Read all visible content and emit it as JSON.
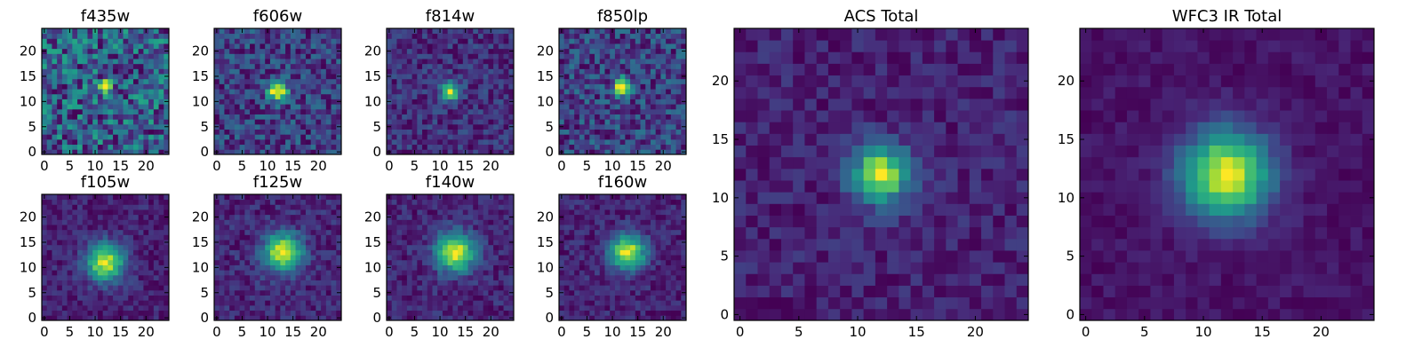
{
  "chart_data": [
    {
      "type": "heatmap",
      "title": "f435w",
      "colormap": "viridis",
      "grid_size": 25,
      "xlim": [
        0,
        24
      ],
      "ylim": [
        0,
        24
      ],
      "xticks": [
        "0",
        "5",
        "10",
        "15",
        "20"
      ],
      "yticks": [
        "0",
        "5",
        "10",
        "15",
        "20"
      ],
      "peak": [
        12,
        13
      ],
      "peak_width": 0.9,
      "peak_amp": 0.55,
      "noise": 0.55,
      "base": 0.35,
      "seed": 11
    },
    {
      "type": "heatmap",
      "title": "f606w",
      "colormap": "viridis",
      "grid_size": 25,
      "xlim": [
        0,
        24
      ],
      "ylim": [
        0,
        24
      ],
      "xticks": [
        "0",
        "5",
        "10",
        "15",
        "20"
      ],
      "yticks": [
        "0",
        "5",
        "10",
        "15",
        "20"
      ],
      "peak": [
        12,
        12
      ],
      "peak_width": 1.4,
      "peak_amp": 0.75,
      "noise": 0.35,
      "base": 0.25,
      "seed": 23
    },
    {
      "type": "heatmap",
      "title": "f814w",
      "colormap": "viridis",
      "grid_size": 25,
      "xlim": [
        0,
        24
      ],
      "ylim": [
        0,
        24
      ],
      "xticks": [
        "0",
        "5",
        "10",
        "15",
        "20"
      ],
      "yticks": [
        "0",
        "5",
        "10",
        "15",
        "20"
      ],
      "peak": [
        12,
        12
      ],
      "peak_width": 1.3,
      "peak_amp": 0.8,
      "noise": 0.3,
      "base": 0.2,
      "seed": 37
    },
    {
      "type": "heatmap",
      "title": "f850lp",
      "colormap": "viridis",
      "grid_size": 25,
      "xlim": [
        0,
        24
      ],
      "ylim": [
        0,
        24
      ],
      "xticks": [
        "0",
        "5",
        "10",
        "15",
        "20"
      ],
      "yticks": [
        "0",
        "5",
        "10",
        "15",
        "20"
      ],
      "peak": [
        12,
        13
      ],
      "peak_width": 1.2,
      "peak_amp": 0.75,
      "noise": 0.35,
      "base": 0.2,
      "seed": 41
    },
    {
      "type": "heatmap",
      "title": "f105w",
      "colormap": "viridis",
      "grid_size": 25,
      "xlim": [
        0,
        24
      ],
      "ylim": [
        0,
        24
      ],
      "xticks": [
        "0",
        "5",
        "10",
        "15",
        "20"
      ],
      "yticks": [
        "0",
        "5",
        "10",
        "15",
        "20"
      ],
      "peak": [
        12,
        11
      ],
      "peak_width": 2.6,
      "peak_amp": 0.85,
      "noise": 0.2,
      "base": 0.15,
      "seed": 53
    },
    {
      "type": "heatmap",
      "title": "f125w",
      "colormap": "viridis",
      "grid_size": 25,
      "xlim": [
        0,
        24
      ],
      "ylim": [
        0,
        24
      ],
      "xticks": [
        "0",
        "5",
        "10",
        "15",
        "20"
      ],
      "yticks": [
        "0",
        "5",
        "10",
        "15",
        "20"
      ],
      "peak": [
        13,
        13
      ],
      "peak_width": 2.6,
      "peak_amp": 0.85,
      "noise": 0.22,
      "base": 0.15,
      "seed": 61
    },
    {
      "type": "heatmap",
      "title": "f140w",
      "colormap": "viridis",
      "grid_size": 25,
      "xlim": [
        0,
        24
      ],
      "ylim": [
        0,
        24
      ],
      "xticks": [
        "0",
        "5",
        "10",
        "15",
        "20"
      ],
      "yticks": [
        "0",
        "5",
        "10",
        "15",
        "20"
      ],
      "peak": [
        13,
        13
      ],
      "peak_width": 2.6,
      "peak_amp": 0.85,
      "noise": 0.2,
      "base": 0.15,
      "seed": 73
    },
    {
      "type": "heatmap",
      "title": "f160w",
      "colormap": "viridis",
      "grid_size": 25,
      "xlim": [
        0,
        24
      ],
      "ylim": [
        0,
        24
      ],
      "xticks": [
        "0",
        "5",
        "10",
        "15",
        "20"
      ],
      "yticks": [
        "0",
        "5",
        "10",
        "15",
        "20"
      ],
      "peak": [
        13,
        13
      ],
      "peak_width": 2.4,
      "peak_amp": 0.85,
      "noise": 0.2,
      "base": 0.12,
      "seed": 83
    },
    {
      "type": "heatmap",
      "title": "ACS Total",
      "colormap": "viridis",
      "grid_size": 25,
      "xlim": [
        0,
        24
      ],
      "ylim": [
        0,
        24
      ],
      "xticks": [
        "0",
        "5",
        "10",
        "15",
        "20"
      ],
      "yticks": [
        "0",
        "5",
        "10",
        "15",
        "20"
      ],
      "peak": [
        12,
        12
      ],
      "peak_width": 1.7,
      "peak_amp": 0.8,
      "noise": 0.18,
      "base": 0.2,
      "seed": 97
    },
    {
      "type": "heatmap",
      "title": "WFC3 IR Total",
      "colormap": "viridis",
      "grid_size": 25,
      "xlim": [
        0,
        24
      ],
      "ylim": [
        0,
        24
      ],
      "xticks": [
        "0",
        "5",
        "10",
        "15",
        "20"
      ],
      "yticks": [
        "0",
        "5",
        "10",
        "15",
        "20"
      ],
      "peak": [
        12,
        12
      ],
      "peak_width": 2.6,
      "peak_amp": 0.9,
      "noise": 0.1,
      "base": 0.12,
      "seed": 101
    }
  ]
}
